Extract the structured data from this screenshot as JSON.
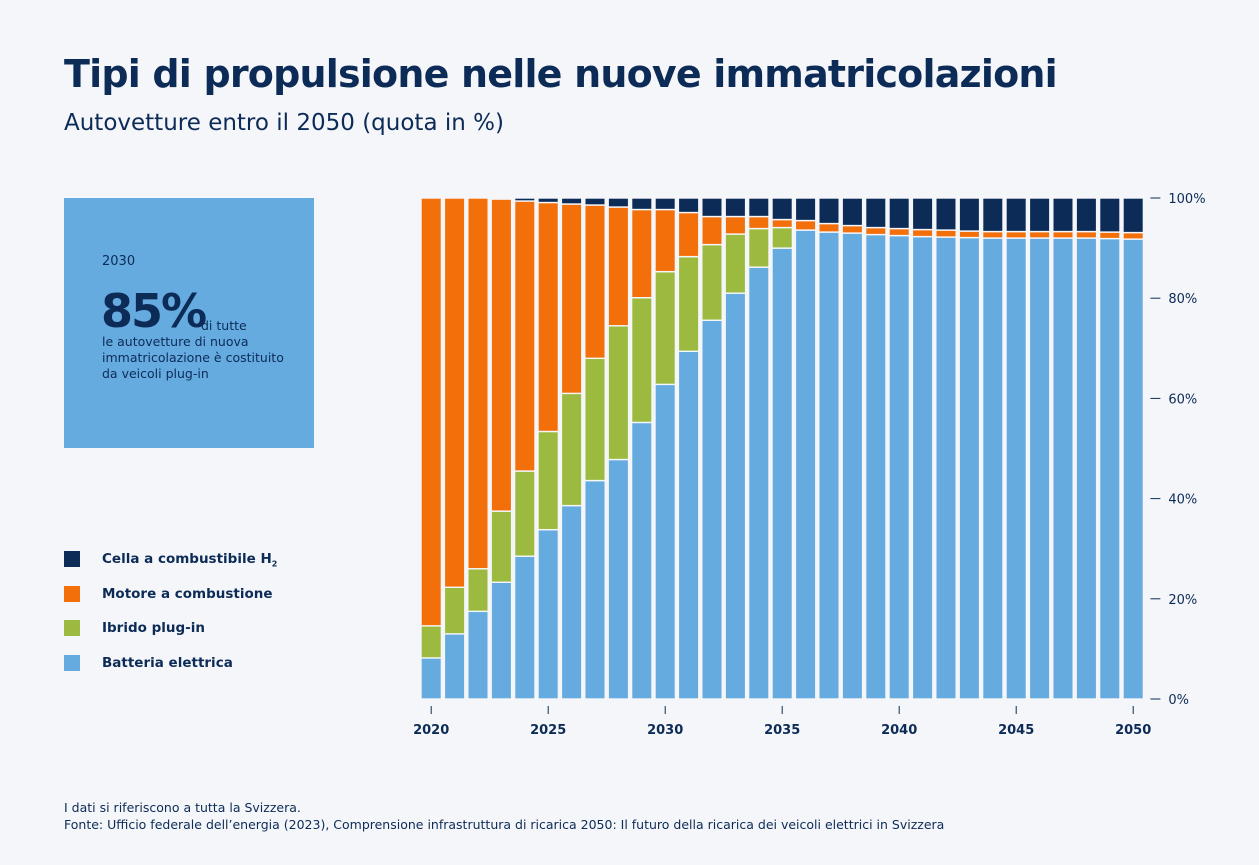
{
  "header": {
    "title": "Tipi di propulsione nelle nuove immatricolazioni",
    "subtitle": "Autovetture entro il 2050 (quota in %)"
  },
  "kpi": {
    "year": "2030",
    "value": "85%",
    "text_a": "di tutte",
    "text_b": "le autovetture di nuova immatricolazione è costituito da veicoli plug-in"
  },
  "legend": [
    {
      "label": "Cella a combustibile H",
      "sub": "2",
      "color": "#0d2b57"
    },
    {
      "label": "Motore a combustione",
      "sub": "",
      "color": "#f36f0a"
    },
    {
      "label": "Ibrido plug-in",
      "sub": "",
      "color": "#9bba3f"
    },
    {
      "label": "Batteria elettrica",
      "sub": "",
      "color": "#65abe0"
    }
  ],
  "footer": {
    "note": "I dati si riferiscono a tutta la Svizzera.",
    "source": "Fonte: Ufficio federale dell’energia (2023), Comprensione infrastruttura di ricarica 2050: Il futuro della ricarica dei veicoli elettrici in Svizzera"
  },
  "chart_data": {
    "type": "bar",
    "stacked": true,
    "title": "Tipi di propulsione nelle nuove immatricolazioni",
    "subtitle": "Autovetture entro il 2050 (quota in %)",
    "ylim": [
      0,
      100
    ],
    "y_ticks": [
      "100%",
      "80%",
      "60%",
      "40%",
      "20%",
      "0%"
    ],
    "y_tick_values": [
      100,
      80,
      60,
      40,
      20,
      0
    ],
    "x_tick_labels": [
      "2020",
      "2025",
      "2030",
      "2035",
      "2040",
      "2045",
      "2050"
    ],
    "x_tick_values": [
      2020,
      2025,
      2030,
      2035,
      2040,
      2045,
      2050
    ],
    "categories": [
      2020,
      2021,
      2022,
      2023,
      2024,
      2025,
      2026,
      2027,
      2028,
      2029,
      2030,
      2031,
      2032,
      2033,
      2034,
      2035,
      2036,
      2037,
      2038,
      2039,
      2040,
      2041,
      2042,
      2043,
      2044,
      2045,
      2046,
      2047,
      2048,
      2049,
      2050
    ],
    "series": [
      {
        "name": "Batteria elettrica",
        "color": "#65abe0",
        "values": [
          8.2,
          13,
          17.5,
          23.3,
          28.5,
          33.8,
          38.6,
          43.6,
          47.8,
          55.2,
          62.8,
          69.4,
          75.6,
          81,
          86.2,
          90,
          93.6,
          93.2,
          93,
          92.7,
          92.5,
          92.3,
          92.2,
          92.1,
          92,
          92,
          92,
          92,
          92,
          91.9,
          91.8
        ]
      },
      {
        "name": "Ibrido plug-in",
        "color": "#9bba3f",
        "values": [
          6.4,
          9.3,
          8.5,
          14.2,
          17,
          19.6,
          22.4,
          24.4,
          26.7,
          24.9,
          22.5,
          18.9,
          15.1,
          11.8,
          7.7,
          4.1,
          0,
          0,
          0,
          0,
          0,
          0,
          0,
          0,
          0,
          0,
          0,
          0,
          0,
          0,
          0
        ]
      },
      {
        "name": "Motore a combustione",
        "color": "#f36f0a",
        "values": [
          85.4,
          77.7,
          74,
          62.3,
          53.9,
          45.7,
          37.8,
          30.6,
          23.7,
          17.6,
          12.4,
          8.8,
          5.6,
          3.5,
          2.4,
          1.6,
          1.9,
          1.7,
          1.5,
          1.4,
          1.4,
          1.4,
          1.4,
          1.3,
          1.3,
          1.3,
          1.3,
          1.3,
          1.3,
          1.3,
          1.3
        ]
      },
      {
        "name": "Cella a combustibile H2",
        "color": "#0d2b57",
        "values": [
          0,
          0,
          0,
          0.2,
          0.6,
          0.9,
          1.2,
          1.4,
          1.8,
          2.3,
          2.3,
          2.9,
          3.7,
          3.7,
          3.7,
          4.3,
          4.5,
          5.1,
          5.5,
          5.9,
          6.1,
          6.3,
          6.4,
          6.6,
          6.7,
          6.7,
          6.7,
          6.7,
          6.7,
          6.8,
          6.9
        ]
      }
    ]
  }
}
